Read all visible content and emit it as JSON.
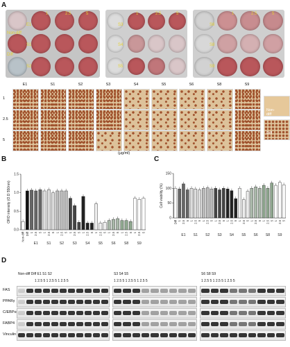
{
  "panels": {
    "A": "A",
    "B": "B",
    "C": "C",
    "D": "D"
  },
  "plates": {
    "plate1": {
      "col_labels": [
        "1",
        "2.5",
        "5"
      ],
      "row_labels": [
        "E1",
        "S1",
        "S2"
      ],
      "extra_labels": [
        "Non-diff",
        "Diff"
      ]
    },
    "plate2": {
      "col_labels": [
        "1",
        "2.5",
        "5"
      ],
      "row_labels": [
        "S3",
        "S4",
        "S5"
      ]
    },
    "plate3": {
      "col_labels": [
        "1",
        "2.5",
        "5"
      ],
      "row_labels": [
        "S6",
        "S8",
        "S9"
      ]
    }
  },
  "micro_grid": {
    "columns": [
      "E1",
      "S1",
      "S2",
      "S3",
      "S4",
      "S5",
      "S6",
      "S8",
      "S9"
    ],
    "rows": [
      "1",
      "2.5",
      "5"
    ],
    "control_labels": [
      "Non-diff",
      "Diff"
    ],
    "unit": "(μg/ml)"
  },
  "colors": {
    "oro_dark": "#a0522d",
    "oro_light": "#ddc29a",
    "plate_bg": "#c9c9c9",
    "well_red": "#b9575b",
    "well_pale": "#d9c6c8"
  },
  "chart_data": [
    {
      "type": "bar",
      "panel": "B",
      "ylabel": "ORO intensity (O.D 550nm)",
      "ylim": [
        0,
        1.5
      ],
      "yticks": [
        "0.0",
        "0.5",
        "1.0",
        "1.5"
      ],
      "groups": [
        "E1",
        "S1",
        "S2",
        "S3",
        "S4",
        "S5",
        "S6",
        "S8",
        "S9"
      ],
      "categories": [
        "Non-diff",
        "Diff",
        "1",
        "2.5",
        "5",
        "1",
        "2.5",
        "5",
        "1",
        "2.5",
        "5",
        "1",
        "2.5",
        "5",
        "1",
        "2.5",
        "5",
        "1",
        "2.5",
        "5",
        "1",
        "2.5",
        "5",
        "1",
        "2.5",
        "5",
        "1",
        "2.5",
        "5"
      ],
      "values": [
        0.22,
        1.05,
        1.07,
        1.05,
        1.08,
        1.05,
        1.08,
        1.0,
        1.05,
        1.05,
        1.05,
        0.85,
        0.65,
        0.2,
        0.9,
        0.18,
        0.18,
        0.7,
        0.18,
        0.2,
        0.25,
        0.28,
        0.3,
        0.25,
        0.25,
        0.22,
        0.85,
        0.82,
        0.85
      ]
    },
    {
      "type": "bar",
      "panel": "C",
      "ylabel": "Cell viability (%)",
      "ylim": [
        0,
        150
      ],
      "yticks": [
        "0",
        "50",
        "100",
        "150"
      ],
      "groups": [
        "E1",
        "S1",
        "S2",
        "S3",
        "S4",
        "S5",
        "S6",
        "S8",
        "S9"
      ],
      "categories": [
        "Diff",
        "1",
        "2.5",
        "5",
        "1",
        "2.5",
        "5",
        "1",
        "2.5",
        "5",
        "1",
        "2.5",
        "5",
        "1",
        "2.5",
        "5",
        "1",
        "2.5",
        "5",
        "1",
        "2.5",
        "5",
        "1",
        "2.5",
        "5",
        "1",
        "2.5",
        "5"
      ],
      "values": [
        100,
        98,
        115,
        95,
        100,
        98,
        95,
        100,
        102,
        98,
        100,
        95,
        100,
        98,
        92,
        65,
        100,
        62,
        90,
        100,
        105,
        100,
        110,
        100,
        118,
        110,
        120,
        112
      ]
    }
  ],
  "western": {
    "proteins": [
      "FAS",
      "PPARγ",
      "C/EBPα",
      "FABP4",
      "Vinculin"
    ],
    "lane_groups": [
      {
        "labels": [
          "Non-diff",
          "Diff",
          "E1",
          "S1",
          "S2"
        ],
        "doses": [
          "1",
          "2.5",
          "5",
          "1",
          "2.5",
          "5",
          "1",
          "2.5",
          "5"
        ]
      },
      {
        "labels": [
          "S3",
          "S4",
          "S5"
        ],
        "doses": [
          "1",
          "2.5",
          "5",
          "1",
          "2.5",
          "5",
          "1",
          "2.5",
          "5"
        ]
      },
      {
        "labels": [
          "S6",
          "S8",
          "S9"
        ],
        "doses": [
          "1",
          "2.5",
          "5",
          "1",
          "2.5",
          "5",
          "1",
          "2.5",
          "5"
        ]
      }
    ]
  }
}
